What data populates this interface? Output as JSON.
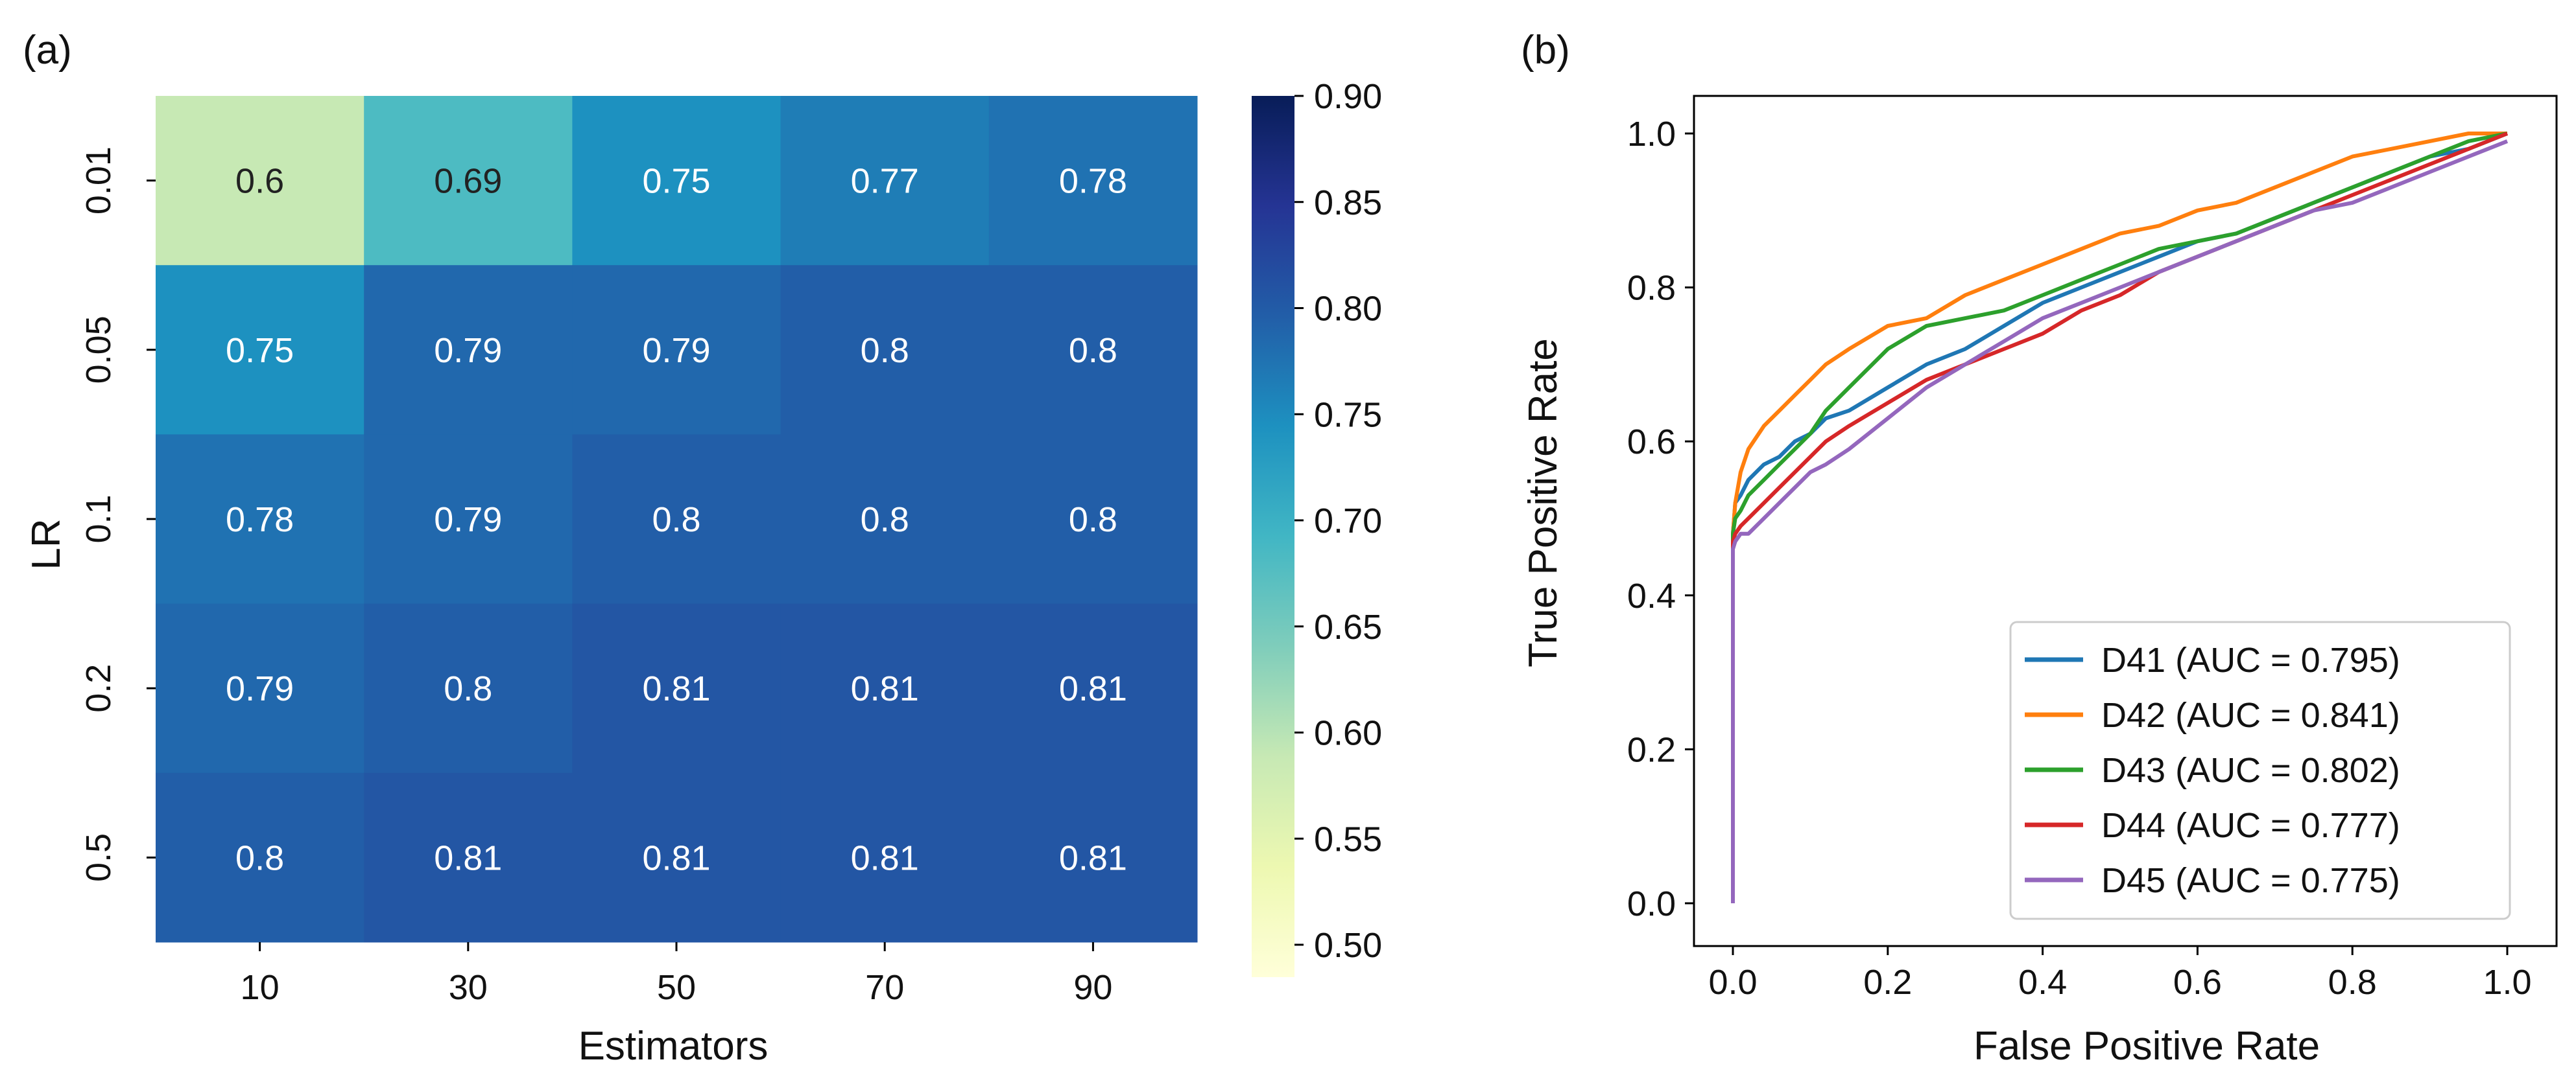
{
  "chart_data": [
    {
      "panel_label": "(a)",
      "type": "heatmap",
      "title": "",
      "xlabel": "Estimators",
      "ylabel": "LR",
      "x_categories": [
        "10",
        "30",
        "50",
        "70",
        "90"
      ],
      "y_categories": [
        "0.01",
        "0.05",
        "0.1",
        "0.2",
        "0.5"
      ],
      "values": [
        [
          0.6,
          0.69,
          0.75,
          0.77,
          0.78
        ],
        [
          0.75,
          0.79,
          0.79,
          0.8,
          0.8
        ],
        [
          0.78,
          0.79,
          0.8,
          0.8,
          0.8
        ],
        [
          0.79,
          0.8,
          0.81,
          0.81,
          0.81
        ],
        [
          0.8,
          0.81,
          0.81,
          0.81,
          0.81
        ]
      ],
      "cell_labels": [
        [
          "0.6",
          "0.69",
          "0.75",
          "0.77",
          "0.78"
        ],
        [
          "0.75",
          "0.79",
          "0.79",
          "0.8",
          "0.8"
        ],
        [
          "0.78",
          "0.79",
          "0.8",
          "0.8",
          "0.8"
        ],
        [
          "0.79",
          "0.8",
          "0.81",
          "0.81",
          "0.81"
        ],
        [
          "0.8",
          "0.81",
          "0.81",
          "0.81",
          "0.81"
        ]
      ],
      "colorbar": {
        "colormap": "YlGnBu",
        "range": [
          0.5,
          0.9
        ],
        "ticks": [
          "0.50",
          "0.55",
          "0.60",
          "0.65",
          "0.70",
          "0.75",
          "0.80",
          "0.85",
          "0.90"
        ]
      }
    },
    {
      "panel_label": "(b)",
      "type": "line",
      "title": "",
      "xlabel": "False Positive Rate",
      "ylabel": "True Positive Rate",
      "xlim": [
        0,
        1
      ],
      "ylim": [
        0,
        1
      ],
      "x_ticks": [
        "0.0",
        "0.2",
        "0.4",
        "0.6",
        "0.8",
        "1.0"
      ],
      "y_ticks": [
        "0.0",
        "0.2",
        "0.4",
        "0.6",
        "0.8",
        "1.0"
      ],
      "legend_position": "lower-right",
      "series": [
        {
          "name": "D41 (AUC = 0.795)",
          "color": "#1f77b4",
          "x": [
            0,
            0,
            0.003,
            0.01,
            0.02,
            0.04,
            0.06,
            0.08,
            0.1,
            0.12,
            0.15,
            0.2,
            0.25,
            0.3,
            0.35,
            0.4,
            0.45,
            0.5,
            0.55,
            0.6,
            0.65,
            0.7,
            0.75,
            0.8,
            0.85,
            0.9,
            0.95,
            1.0
          ],
          "y": [
            0,
            0.48,
            0.52,
            0.53,
            0.55,
            0.57,
            0.58,
            0.6,
            0.61,
            0.63,
            0.64,
            0.67,
            0.7,
            0.72,
            0.75,
            0.78,
            0.8,
            0.82,
            0.84,
            0.86,
            0.87,
            0.89,
            0.91,
            0.93,
            0.95,
            0.97,
            0.98,
            1.0
          ]
        },
        {
          "name": "D42 (AUC = 0.841)",
          "color": "#ff7f0e",
          "x": [
            0,
            0,
            0.003,
            0.01,
            0.02,
            0.04,
            0.06,
            0.08,
            0.1,
            0.12,
            0.15,
            0.2,
            0.25,
            0.3,
            0.35,
            0.4,
            0.45,
            0.5,
            0.55,
            0.6,
            0.65,
            0.7,
            0.75,
            0.8,
            0.85,
            0.9,
            0.95,
            1.0
          ],
          "y": [
            0,
            0.48,
            0.52,
            0.56,
            0.59,
            0.62,
            0.64,
            0.66,
            0.68,
            0.7,
            0.72,
            0.75,
            0.76,
            0.79,
            0.81,
            0.83,
            0.85,
            0.87,
            0.88,
            0.9,
            0.91,
            0.93,
            0.95,
            0.97,
            0.98,
            0.99,
            1.0,
            1.0
          ]
        },
        {
          "name": "D43 (AUC = 0.802)",
          "color": "#2ca02c",
          "x": [
            0,
            0,
            0.003,
            0.01,
            0.02,
            0.04,
            0.06,
            0.08,
            0.1,
            0.12,
            0.15,
            0.2,
            0.25,
            0.3,
            0.35,
            0.4,
            0.45,
            0.5,
            0.55,
            0.6,
            0.65,
            0.7,
            0.75,
            0.8,
            0.85,
            0.9,
            0.95,
            1.0
          ],
          "y": [
            0,
            0.48,
            0.5,
            0.51,
            0.53,
            0.55,
            0.57,
            0.59,
            0.61,
            0.64,
            0.67,
            0.72,
            0.75,
            0.76,
            0.77,
            0.79,
            0.81,
            0.83,
            0.85,
            0.86,
            0.87,
            0.89,
            0.91,
            0.93,
            0.95,
            0.97,
            0.99,
            1.0
          ]
        },
        {
          "name": "D44 (AUC = 0.777)",
          "color": "#d62728",
          "x": [
            0,
            0,
            0.003,
            0.01,
            0.02,
            0.04,
            0.06,
            0.08,
            0.1,
            0.12,
            0.15,
            0.2,
            0.25,
            0.3,
            0.35,
            0.4,
            0.45,
            0.5,
            0.55,
            0.6,
            0.65,
            0.7,
            0.75,
            0.8,
            0.85,
            0.9,
            0.95,
            1.0
          ],
          "y": [
            0,
            0.47,
            0.48,
            0.49,
            0.5,
            0.52,
            0.54,
            0.56,
            0.58,
            0.6,
            0.62,
            0.65,
            0.68,
            0.7,
            0.72,
            0.74,
            0.77,
            0.79,
            0.82,
            0.84,
            0.86,
            0.88,
            0.9,
            0.92,
            0.94,
            0.96,
            0.98,
            1.0
          ]
        },
        {
          "name": "D45 (AUC = 0.775)",
          "color": "#9467bd",
          "x": [
            0,
            0,
            0.003,
            0.01,
            0.02,
            0.04,
            0.06,
            0.08,
            0.1,
            0.12,
            0.15,
            0.2,
            0.25,
            0.3,
            0.35,
            0.4,
            0.45,
            0.5,
            0.55,
            0.6,
            0.65,
            0.7,
            0.75,
            0.8,
            0.85,
            0.9,
            0.95,
            1.0
          ],
          "y": [
            0,
            0.46,
            0.47,
            0.48,
            0.48,
            0.5,
            0.52,
            0.54,
            0.56,
            0.57,
            0.59,
            0.63,
            0.67,
            0.7,
            0.73,
            0.76,
            0.78,
            0.8,
            0.82,
            0.84,
            0.86,
            0.88,
            0.9,
            0.91,
            0.93,
            0.95,
            0.97,
            0.99
          ]
        }
      ]
    }
  ]
}
